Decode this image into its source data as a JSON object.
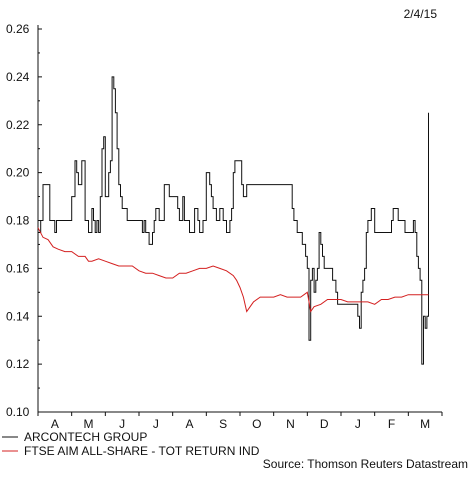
{
  "header": {
    "date": "2/4/15"
  },
  "footer": {
    "source": "Source: Thomson Reuters Datastream"
  },
  "colors": {
    "series_a": "#111111",
    "series_b": "#d42020",
    "axis": "#111111"
  },
  "chart_data": {
    "type": "line",
    "title": "",
    "xlabel": "",
    "ylabel": "",
    "ylim": [
      0.1,
      0.26
    ],
    "yticks": [
      "0.26",
      "0.24",
      "0.22",
      "0.20",
      "0.18",
      "0.16",
      "0.14",
      "0.12",
      "0.10"
    ],
    "xticks": [
      "A",
      "M",
      "J",
      "J",
      "A",
      "S",
      "O",
      "N",
      "D",
      "J",
      "F",
      "M"
    ],
    "grid": false,
    "legend": "bottom-left",
    "series": [
      {
        "name": "ARCONTECH GROUP",
        "color": "#111111",
        "step": true,
        "x": [
          0.0,
          0.08,
          0.15,
          0.35,
          0.5,
          0.55,
          0.7,
          0.8,
          0.85,
          1.0,
          1.1,
          1.15,
          1.2,
          1.3,
          1.4,
          1.5,
          1.6,
          1.65,
          1.7,
          1.75,
          1.8,
          1.85,
          1.9,
          1.95,
          2.0,
          2.05,
          2.1,
          2.15,
          2.2,
          2.25,
          2.3,
          2.35,
          2.4,
          2.45,
          2.5,
          2.55,
          2.6,
          2.65,
          2.7,
          2.75,
          3.0,
          3.05,
          3.1,
          3.15,
          3.2,
          3.3,
          3.4,
          3.45,
          3.5,
          3.6,
          3.75,
          3.85,
          3.9,
          4.0,
          4.1,
          4.15,
          4.2,
          4.3,
          4.35,
          4.5,
          4.6,
          4.65,
          4.7,
          4.75,
          4.8,
          4.9,
          5.0,
          5.05,
          5.1,
          5.15,
          5.2,
          5.3,
          5.4,
          5.5,
          5.6,
          5.65,
          5.7,
          5.75,
          5.8,
          5.85,
          5.95,
          6.05,
          6.1,
          6.2,
          6.3,
          6.4,
          6.5,
          6.6,
          6.7,
          7.0,
          7.2,
          7.4,
          7.5,
          7.55,
          7.6,
          7.65,
          7.7,
          7.75,
          7.8,
          7.85,
          7.9,
          7.95,
          8.0,
          8.05,
          8.1,
          8.15,
          8.2,
          8.25,
          8.3,
          8.35,
          8.4,
          8.45,
          8.5,
          8.6,
          8.7,
          8.75,
          8.8,
          8.85,
          8.9,
          8.95,
          9.0,
          9.1,
          9.2,
          9.3,
          9.4,
          9.45,
          9.5,
          9.55,
          9.6,
          9.65,
          9.7,
          9.75,
          9.8,
          9.9,
          10.0,
          10.1,
          10.2,
          10.3,
          10.4,
          10.45,
          10.5,
          10.55,
          10.6,
          10.65,
          10.7,
          10.8,
          10.9,
          10.95,
          11.0,
          11.05,
          11.1,
          11.15,
          11.2,
          11.25,
          11.3,
          11.35,
          11.4,
          11.45,
          11.5,
          11.55,
          11.6
        ],
        "values": [
          0.175,
          0.18,
          0.195,
          0.18,
          0.175,
          0.18,
          0.18,
          0.18,
          0.18,
          0.19,
          0.205,
          0.2,
          0.195,
          0.205,
          0.18,
          0.175,
          0.185,
          0.18,
          0.175,
          0.18,
          0.175,
          0.19,
          0.21,
          0.215,
          0.19,
          0.19,
          0.2,
          0.205,
          0.24,
          0.235,
          0.225,
          0.21,
          0.195,
          0.19,
          0.185,
          0.185,
          0.185,
          0.18,
          0.18,
          0.18,
          0.18,
          0.18,
          0.175,
          0.18,
          0.175,
          0.17,
          0.175,
          0.18,
          0.185,
          0.18,
          0.195,
          0.195,
          0.19,
          0.19,
          0.19,
          0.185,
          0.18,
          0.19,
          0.18,
          0.175,
          0.175,
          0.185,
          0.185,
          0.18,
          0.175,
          0.18,
          0.2,
          0.2,
          0.195,
          0.19,
          0.185,
          0.18,
          0.185,
          0.18,
          0.175,
          0.175,
          0.18,
          0.185,
          0.2,
          0.205,
          0.205,
          0.195,
          0.19,
          0.195,
          0.195,
          0.195,
          0.195,
          0.195,
          0.195,
          0.195,
          0.195,
          0.195,
          0.195,
          0.185,
          0.18,
          0.18,
          0.175,
          0.175,
          0.175,
          0.17,
          0.17,
          0.165,
          0.16,
          0.13,
          0.155,
          0.16,
          0.15,
          0.155,
          0.16,
          0.175,
          0.17,
          0.165,
          0.16,
          0.16,
          0.16,
          0.155,
          0.155,
          0.15,
          0.145,
          0.145,
          0.145,
          0.145,
          0.145,
          0.145,
          0.145,
          0.145,
          0.14,
          0.135,
          0.15,
          0.155,
          0.16,
          0.175,
          0.18,
          0.185,
          0.175,
          0.175,
          0.175,
          0.175,
          0.175,
          0.175,
          0.18,
          0.185,
          0.185,
          0.185,
          0.18,
          0.18,
          0.175,
          0.175,
          0.175,
          0.175,
          0.175,
          0.18,
          0.175,
          0.165,
          0.16,
          0.155,
          0.12,
          0.14,
          0.135,
          0.14,
          0.225
        ]
      },
      {
        "name": "FTSE AIM ALL-SHARE - TOT RETURN IND",
        "color": "#d42020",
        "step": false,
        "x": [
          0.0,
          0.15,
          0.3,
          0.45,
          0.6,
          0.8,
          1.0,
          1.2,
          1.4,
          1.5,
          1.6,
          1.8,
          2.0,
          2.2,
          2.4,
          2.6,
          2.8,
          3.0,
          3.2,
          3.4,
          3.6,
          3.8,
          4.0,
          4.2,
          4.4,
          4.6,
          4.8,
          5.0,
          5.2,
          5.4,
          5.6,
          5.8,
          5.9,
          6.0,
          6.1,
          6.2,
          6.4,
          6.6,
          6.8,
          7.0,
          7.2,
          7.4,
          7.6,
          7.8,
          8.0,
          8.1,
          8.2,
          8.4,
          8.6,
          8.8,
          9.0,
          9.2,
          9.4,
          9.6,
          9.8,
          10.0,
          10.2,
          10.4,
          10.6,
          10.8,
          11.0,
          11.2,
          11.4,
          11.6
        ],
        "values": [
          0.177,
          0.173,
          0.172,
          0.169,
          0.168,
          0.167,
          0.167,
          0.165,
          0.165,
          0.163,
          0.163,
          0.164,
          0.163,
          0.162,
          0.161,
          0.161,
          0.161,
          0.159,
          0.158,
          0.158,
          0.157,
          0.156,
          0.156,
          0.158,
          0.158,
          0.159,
          0.16,
          0.16,
          0.161,
          0.16,
          0.159,
          0.157,
          0.155,
          0.152,
          0.148,
          0.142,
          0.146,
          0.148,
          0.148,
          0.148,
          0.149,
          0.148,
          0.148,
          0.148,
          0.15,
          0.142,
          0.144,
          0.145,
          0.147,
          0.147,
          0.147,
          0.146,
          0.146,
          0.146,
          0.146,
          0.145,
          0.147,
          0.147,
          0.148,
          0.148,
          0.149,
          0.149,
          0.149,
          0.149
        ]
      }
    ]
  }
}
